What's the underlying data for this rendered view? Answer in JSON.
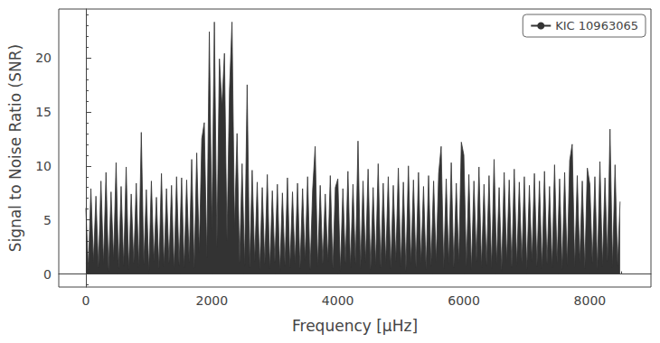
{
  "chart_data": {
    "type": "line",
    "xlabel": "Frequency [μHz]",
    "ylabel": "Signal to Noise Ratio (SNR)",
    "xlim": [
      -430,
      8970
    ],
    "xticks": [
      0,
      2000,
      4000,
      6000,
      8000
    ],
    "ylim": [
      -1.2,
      24.5
    ],
    "yticks": [
      0,
      5,
      10,
      15,
      20
    ],
    "grid": false,
    "legend": "upper right",
    "x": [
      0,
      40,
      80,
      120,
      160,
      200,
      240,
      280,
      320,
      360,
      400,
      440,
      480,
      520,
      560,
      600,
      640,
      680,
      720,
      760,
      800,
      840,
      880,
      920,
      960,
      1000,
      1040,
      1080,
      1120,
      1160,
      1200,
      1240,
      1280,
      1320,
      1360,
      1400,
      1440,
      1480,
      1520,
      1560,
      1600,
      1640,
      1680,
      1720,
      1760,
      1800,
      1840,
      1880,
      1920,
      1960,
      2000,
      2040,
      2080,
      2120,
      2160,
      2200,
      2240,
      2280,
      2320,
      2360,
      2400,
      2440,
      2480,
      2520,
      2560,
      2600,
      2640,
      2680,
      2720,
      2760,
      2800,
      2840,
      2880,
      2920,
      2960,
      3000,
      3040,
      3080,
      3120,
      3160,
      3200,
      3240,
      3280,
      3320,
      3360,
      3400,
      3440,
      3480,
      3520,
      3560,
      3600,
      3640,
      3680,
      3720,
      3760,
      3800,
      3840,
      3880,
      3920,
      3960,
      4000,
      4040,
      4080,
      4120,
      4160,
      4200,
      4240,
      4280,
      4320,
      4360,
      4400,
      4440,
      4480,
      4520,
      4560,
      4600,
      4640,
      4680,
      4720,
      4760,
      4800,
      4840,
      4880,
      4920,
      4960,
      5000,
      5040,
      5080,
      5120,
      5160,
      5200,
      5240,
      5280,
      5320,
      5360,
      5400,
      5440,
      5480,
      5520,
      5560,
      5600,
      5640,
      5680,
      5720,
      5760,
      5800,
      5840,
      5880,
      5920,
      5960,
      6000,
      6040,
      6080,
      6120,
      6160,
      6200,
      6240,
      6280,
      6320,
      6360,
      6400,
      6440,
      6480,
      6520,
      6560,
      6600,
      6640,
      6680,
      6720,
      6760,
      6800,
      6840,
      6880,
      6920,
      6960,
      7000,
      7040,
      7080,
      7120,
      7160,
      7200,
      7240,
      7280,
      7320,
      7360,
      7400,
      7440,
      7480,
      7520,
      7560,
      7600,
      7640,
      7680,
      7720,
      7760,
      7800,
      7840,
      7880,
      7920,
      7960,
      8000,
      8040,
      8080,
      8120,
      8160,
      8200,
      8240,
      8280,
      8320,
      8360,
      8400,
      8440,
      8480
    ],
    "series": [
      {
        "name": "KIC 10963065",
        "color": "#333333",
        "values": [
          6.1,
          0.4,
          7.9,
          1.1,
          7.2,
          0.6,
          8.6,
          0.9,
          9.4,
          0.3,
          7.6,
          1.3,
          10.3,
          0.5,
          8.1,
          0.8,
          9.9,
          0.4,
          7.4,
          1.0,
          8.4,
          0.6,
          13.1,
          0.9,
          7.8,
          0.3,
          8.6,
          1.2,
          7.1,
          0.5,
          9.3,
          0.7,
          7.9,
          1.0,
          8.2,
          0.4,
          9.0,
          0.8,
          8.9,
          0.6,
          8.7,
          1.1,
          10.6,
          0.5,
          11.2,
          2.0,
          12.5,
          14.0,
          1.5,
          22.4,
          4.0,
          23.3,
          2.5,
          19.9,
          15.5,
          20.4,
          3.1,
          17.0,
          23.3,
          4.2,
          13.0,
          1.0,
          10.2,
          0.8,
          17.5,
          0.6,
          9.6,
          1.2,
          8.5,
          0.4,
          8.0,
          0.9,
          9.2,
          0.5,
          7.7,
          1.1,
          8.3,
          0.3,
          7.5,
          0.8,
          8.9,
          0.6,
          7.6,
          1.0,
          8.4,
          0.5,
          7.9,
          1.3,
          9.0,
          0.4,
          7.8,
          11.8,
          0.7,
          8.2,
          0.9,
          7.4,
          1.2,
          9.1,
          0.5,
          8.0,
          8.8,
          0.3,
          7.9,
          1.0,
          9.5,
          0.6,
          8.3,
          0.9,
          12.3,
          0.5,
          8.6,
          1.1,
          9.7,
          0.4,
          8.0,
          0.8,
          10.2,
          0.6,
          8.4,
          1.0,
          9.0,
          0.5,
          8.2,
          1.2,
          9.8,
          0.7,
          8.5,
          0.3,
          10.0,
          0.9,
          8.7,
          0.6,
          9.4,
          1.0,
          8.1,
          0.4,
          9.1,
          0.8,
          8.6,
          1.1,
          9.3,
          11.8,
          0.5,
          8.8,
          0.9,
          10.3,
          0.6,
          8.4,
          1.0,
          12.2,
          11.0,
          0.7,
          9.2,
          0.4,
          8.6,
          1.2,
          9.9,
          0.6,
          8.3,
          0.8,
          9.1,
          0.5,
          10.6,
          0.9,
          8.0,
          0.3,
          9.4,
          1.1,
          8.7,
          0.6,
          9.7,
          0.8,
          8.5,
          1.0,
          9.0,
          0.4,
          8.2,
          1.2,
          9.3,
          0.7,
          8.6,
          0.5,
          9.5,
          0.9,
          8.1,
          0.6,
          10.1,
          1.0,
          8.8,
          0.4,
          9.4,
          0.8,
          10.5,
          12.0,
          0.6,
          9.1,
          1.1,
          8.6,
          0.5,
          9.8,
          8.3,
          1.0,
          9.0,
          0.4,
          10.4,
          0.7,
          8.9,
          1.2,
          13.4,
          0.6,
          10.1,
          0.8,
          6.7
        ]
      }
    ]
  }
}
